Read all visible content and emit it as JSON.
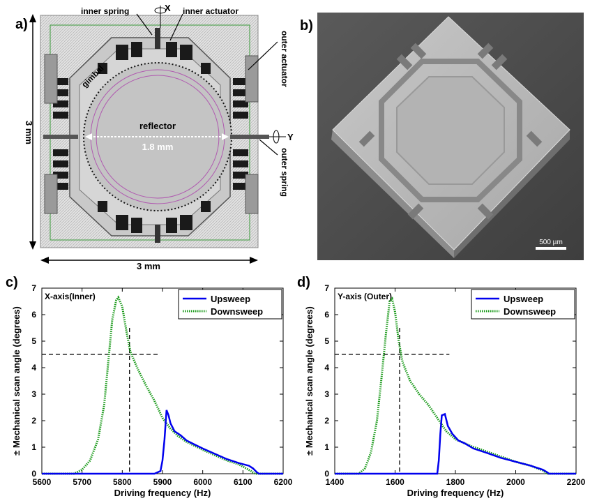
{
  "panels": {
    "a": {
      "label": "a)",
      "annotations": {
        "inner_spring": "inner spring",
        "inner_actuator": "inner actuator",
        "outer_actuator": "outer actuator",
        "outer_spring": "outer spring",
        "gimbal": "gimbal",
        "reflector": "reflector",
        "reflector_size": "1.8 mm",
        "axis_x": "X",
        "axis_y": "Y",
        "width_dim": "3 mm",
        "height_dim": "3 mm"
      },
      "colors": {
        "chip": "#d9d9d9",
        "actuator": "#1a1a1a",
        "gimbal": "#c8c8c8",
        "trace": "#b05ab0",
        "frame": "#3a9a3a"
      }
    },
    "b": {
      "label": "b)",
      "scale_bar": "500 µm"
    }
  },
  "chart_data": [
    {
      "panel_label": "c)",
      "type": "line",
      "title": "X-axis(Inner)",
      "xlabel": "Driving frequency (Hz)",
      "ylabel": "± Mechanical scan angle (degrees)",
      "xlim": [
        5600,
        6200
      ],
      "ylim": [
        0,
        7
      ],
      "xticks": [
        5600,
        5700,
        5800,
        5900,
        6000,
        6100,
        6200
      ],
      "yticks": [
        0,
        1,
        2,
        3,
        4,
        5,
        6,
        7
      ],
      "legend_position": "top-right",
      "series": [
        {
          "name": "Upsweep",
          "color": "#0000ee",
          "style": "solid",
          "points": [
            [
              5600,
              0
            ],
            [
              5880,
              0
            ],
            [
              5895,
              0.1
            ],
            [
              5900,
              0.5
            ],
            [
              5905,
              1.3
            ],
            [
              5910,
              2.4
            ],
            [
              5915,
              2.2
            ],
            [
              5920,
              1.9
            ],
            [
              5930,
              1.6
            ],
            [
              5945,
              1.45
            ],
            [
              5960,
              1.25
            ],
            [
              5980,
              1.1
            ],
            [
              6000,
              0.95
            ],
            [
              6030,
              0.75
            ],
            [
              6060,
              0.55
            ],
            [
              6090,
              0.4
            ],
            [
              6115,
              0.3
            ],
            [
              6125,
              0.2
            ],
            [
              6135,
              0.05
            ],
            [
              6140,
              0
            ],
            [
              6200,
              0
            ]
          ]
        },
        {
          "name": "Downsweep",
          "color": "#1a9a1a",
          "style": "dotted",
          "points": [
            [
              5600,
              0
            ],
            [
              5680,
              0
            ],
            [
              5700,
              0.15
            ],
            [
              5720,
              0.5
            ],
            [
              5740,
              1.3
            ],
            [
              5755,
              2.6
            ],
            [
              5765,
              4.2
            ],
            [
              5775,
              5.8
            ],
            [
              5785,
              6.55
            ],
            [
              5790,
              6.65
            ],
            [
              5800,
              6.3
            ],
            [
              5810,
              5.4
            ],
            [
              5820,
              4.6
            ],
            [
              5840,
              3.9
            ],
            [
              5860,
              3.3
            ],
            [
              5880,
              2.75
            ],
            [
              5900,
              2.1
            ],
            [
              5920,
              1.7
            ],
            [
              5940,
              1.4
            ],
            [
              5960,
              1.2
            ],
            [
              5980,
              1.05
            ],
            [
              6000,
              0.9
            ],
            [
              6030,
              0.7
            ],
            [
              6060,
              0.5
            ],
            [
              6090,
              0.35
            ],
            [
              6120,
              0.1
            ],
            [
              6130,
              0
            ],
            [
              6200,
              0
            ]
          ]
        }
      ],
      "reference_lines": {
        "h_y": 4.5,
        "h_x_end": 5890,
        "v_x": 5818,
        "v_y_top": 5.5
      }
    },
    {
      "panel_label": "d)",
      "type": "line",
      "title": "Y-axis  (Outer)",
      "xlabel": "Driving frequency (Hz)",
      "ylabel": "± Mechanical scan angle (degrees)",
      "xlim": [
        1400,
        2200
      ],
      "ylim": [
        0,
        7
      ],
      "xticks": [
        1400,
        1600,
        1800,
        2000,
        2200
      ],
      "yticks": [
        0,
        1,
        2,
        3,
        4,
        5,
        6,
        7
      ],
      "legend_position": "top-right",
      "series": [
        {
          "name": "Upsweep",
          "color": "#0000ee",
          "style": "solid",
          "points": [
            [
              1400,
              0
            ],
            [
              1740,
              0
            ],
            [
              1745,
              0.5
            ],
            [
              1750,
              1.5
            ],
            [
              1755,
              2.2
            ],
            [
              1765,
              2.25
            ],
            [
              1775,
              1.8
            ],
            [
              1790,
              1.5
            ],
            [
              1810,
              1.25
            ],
            [
              1830,
              1.15
            ],
            [
              1860,
              0.95
            ],
            [
              1900,
              0.8
            ],
            [
              1950,
              0.6
            ],
            [
              2000,
              0.45
            ],
            [
              2050,
              0.3
            ],
            [
              2090,
              0.15
            ],
            [
              2105,
              0.05
            ],
            [
              2110,
              0
            ],
            [
              2200,
              0
            ]
          ]
        },
        {
          "name": "Downsweep",
          "color": "#1a9a1a",
          "style": "dotted",
          "points": [
            [
              1400,
              0
            ],
            [
              1480,
              0
            ],
            [
              1500,
              0.2
            ],
            [
              1520,
              0.8
            ],
            [
              1540,
              2.0
            ],
            [
              1555,
              3.6
            ],
            [
              1570,
              5.3
            ],
            [
              1582,
              6.5
            ],
            [
              1590,
              6.6
            ],
            [
              1600,
              6.1
            ],
            [
              1612,
              5.0
            ],
            [
              1625,
              4.2
            ],
            [
              1650,
              3.5
            ],
            [
              1680,
              3.0
            ],
            [
              1710,
              2.6
            ],
            [
              1740,
              2.1
            ],
            [
              1770,
              1.6
            ],
            [
              1800,
              1.3
            ],
            [
              1850,
              1.05
            ],
            [
              1900,
              0.85
            ],
            [
              1950,
              0.65
            ],
            [
              2000,
              0.45
            ],
            [
              2050,
              0.3
            ],
            [
              2090,
              0.12
            ],
            [
              2105,
              0
            ],
            [
              2200,
              0
            ]
          ]
        }
      ],
      "reference_lines": {
        "h_y": 4.5,
        "h_x_end": 1780,
        "v_x": 1615,
        "v_y_top": 5.5
      }
    }
  ]
}
